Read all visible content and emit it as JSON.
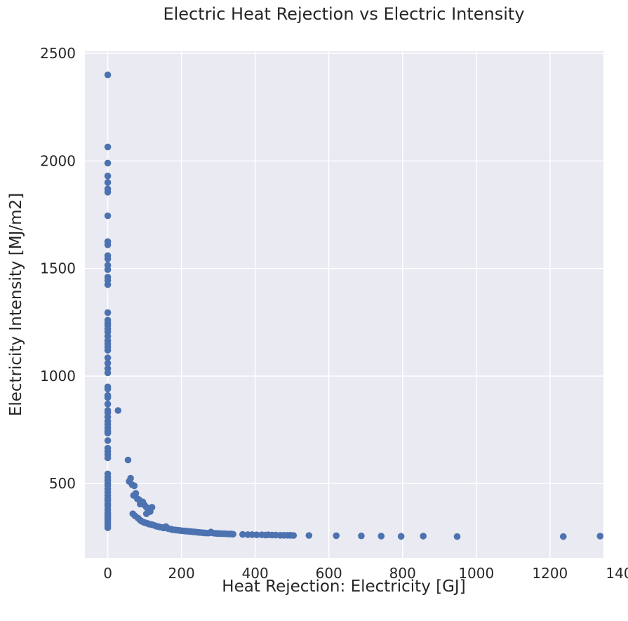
{
  "chart_data": {
    "type": "scatter",
    "title": "Electric Heat Rejection vs Electric Intensity",
    "xlabel": "Heat Rejection: Electricity [GJ]",
    "ylabel": "Electricity Intensity [MJ/m2]",
    "xlim": [
      -62,
      1345
    ],
    "ylim": [
      155,
      2510
    ],
    "xticks": [
      0,
      200,
      400,
      600,
      800,
      1000,
      1200,
      1400
    ],
    "yticks": [
      500,
      1000,
      1500,
      2000,
      2500
    ],
    "grid": true,
    "color": "#4c72b0",
    "background": "#eaeaf2",
    "points": [
      [
        0,
        2400
      ],
      [
        0,
        2065
      ],
      [
        0,
        1990
      ],
      [
        0,
        1930
      ],
      [
        0,
        1900
      ],
      [
        0,
        1870
      ],
      [
        0,
        1855
      ],
      [
        0,
        1745
      ],
      [
        0,
        1625
      ],
      [
        0,
        1610
      ],
      [
        0,
        1560
      ],
      [
        0,
        1545
      ],
      [
        0,
        1515
      ],
      [
        0,
        1495
      ],
      [
        0,
        1460
      ],
      [
        0,
        1445
      ],
      [
        0,
        1425
      ],
      [
        0,
        1295
      ],
      [
        0,
        1260
      ],
      [
        0,
        1245
      ],
      [
        0,
        1235
      ],
      [
        0,
        1220
      ],
      [
        0,
        1205
      ],
      [
        0,
        1185
      ],
      [
        0,
        1165
      ],
      [
        0,
        1150
      ],
      [
        0,
        1135
      ],
      [
        0,
        1120
      ],
      [
        0,
        1085
      ],
      [
        0,
        1060
      ],
      [
        0,
        1035
      ],
      [
        0,
        1015
      ],
      [
        0,
        950
      ],
      [
        0,
        940
      ],
      [
        0,
        910
      ],
      [
        0,
        900
      ],
      [
        0,
        870
      ],
      [
        0,
        840
      ],
      [
        0,
        830
      ],
      [
        0,
        810
      ],
      [
        0,
        790
      ],
      [
        0,
        775
      ],
      [
        0,
        760
      ],
      [
        0,
        745
      ],
      [
        0,
        735
      ],
      [
        0,
        700
      ],
      [
        0,
        665
      ],
      [
        0,
        650
      ],
      [
        0,
        635
      ],
      [
        0,
        620
      ],
      [
        0,
        545
      ],
      [
        0,
        530
      ],
      [
        0,
        515
      ],
      [
        0,
        500
      ],
      [
        0,
        490
      ],
      [
        0,
        475
      ],
      [
        0,
        460
      ],
      [
        0,
        445
      ],
      [
        0,
        430
      ],
      [
        0,
        420
      ],
      [
        0,
        405
      ],
      [
        0,
        395
      ],
      [
        0,
        380
      ],
      [
        0,
        365
      ],
      [
        0,
        355
      ],
      [
        0,
        345
      ],
      [
        0,
        335
      ],
      [
        0,
        325
      ],
      [
        0,
        315
      ],
      [
        0,
        305
      ],
      [
        0,
        295
      ],
      [
        28,
        840
      ],
      [
        55,
        610
      ],
      [
        58,
        510
      ],
      [
        62,
        525
      ],
      [
        66,
        495
      ],
      [
        72,
        490
      ],
      [
        70,
        445
      ],
      [
        76,
        455
      ],
      [
        80,
        430
      ],
      [
        85,
        425
      ],
      [
        88,
        405
      ],
      [
        95,
        415
      ],
      [
        100,
        400
      ],
      [
        105,
        390
      ],
      [
        110,
        380
      ],
      [
        115,
        370
      ],
      [
        120,
        390
      ],
      [
        105,
        360
      ],
      [
        68,
        360
      ],
      [
        74,
        350
      ],
      [
        82,
        340
      ],
      [
        88,
        330
      ],
      [
        92,
        325
      ],
      [
        98,
        320
      ],
      [
        102,
        318
      ],
      [
        108,
        315
      ],
      [
        112,
        312
      ],
      [
        118,
        310
      ],
      [
        122,
        308
      ],
      [
        128,
        305
      ],
      [
        132,
        302
      ],
      [
        138,
        300
      ],
      [
        142,
        298
      ],
      [
        148,
        296
      ],
      [
        152,
        294
      ],
      [
        158,
        300
      ],
      [
        162,
        292
      ],
      [
        166,
        290
      ],
      [
        172,
        288
      ],
      [
        176,
        286
      ],
      [
        182,
        285
      ],
      [
        186,
        284
      ],
      [
        192,
        283
      ],
      [
        196,
        282
      ],
      [
        202,
        281
      ],
      [
        208,
        280
      ],
      [
        214,
        279
      ],
      [
        220,
        278
      ],
      [
        226,
        277
      ],
      [
        232,
        276
      ],
      [
        238,
        275
      ],
      [
        244,
        274
      ],
      [
        250,
        273
      ],
      [
        256,
        272
      ],
      [
        262,
        271
      ],
      [
        268,
        270
      ],
      [
        274,
        270
      ],
      [
        280,
        275
      ],
      [
        286,
        270
      ],
      [
        292,
        269
      ],
      [
        298,
        268
      ],
      [
        305,
        268
      ],
      [
        312,
        267
      ],
      [
        318,
        267
      ],
      [
        326,
        266
      ],
      [
        334,
        266
      ],
      [
        340,
        265
      ],
      [
        366,
        264
      ],
      [
        380,
        263
      ],
      [
        392,
        263
      ],
      [
        404,
        262
      ],
      [
        418,
        262
      ],
      [
        428,
        261
      ],
      [
        436,
        262
      ],
      [
        446,
        261
      ],
      [
        456,
        261
      ],
      [
        468,
        260
      ],
      [
        478,
        260
      ],
      [
        488,
        260
      ],
      [
        496,
        260
      ],
      [
        504,
        259
      ],
      [
        546,
        259
      ],
      [
        620,
        258
      ],
      [
        688,
        257
      ],
      [
        742,
        256
      ],
      [
        796,
        255
      ],
      [
        856,
        256
      ],
      [
        948,
        254
      ],
      [
        1236,
        254
      ],
      [
        1336,
        256
      ]
    ]
  }
}
